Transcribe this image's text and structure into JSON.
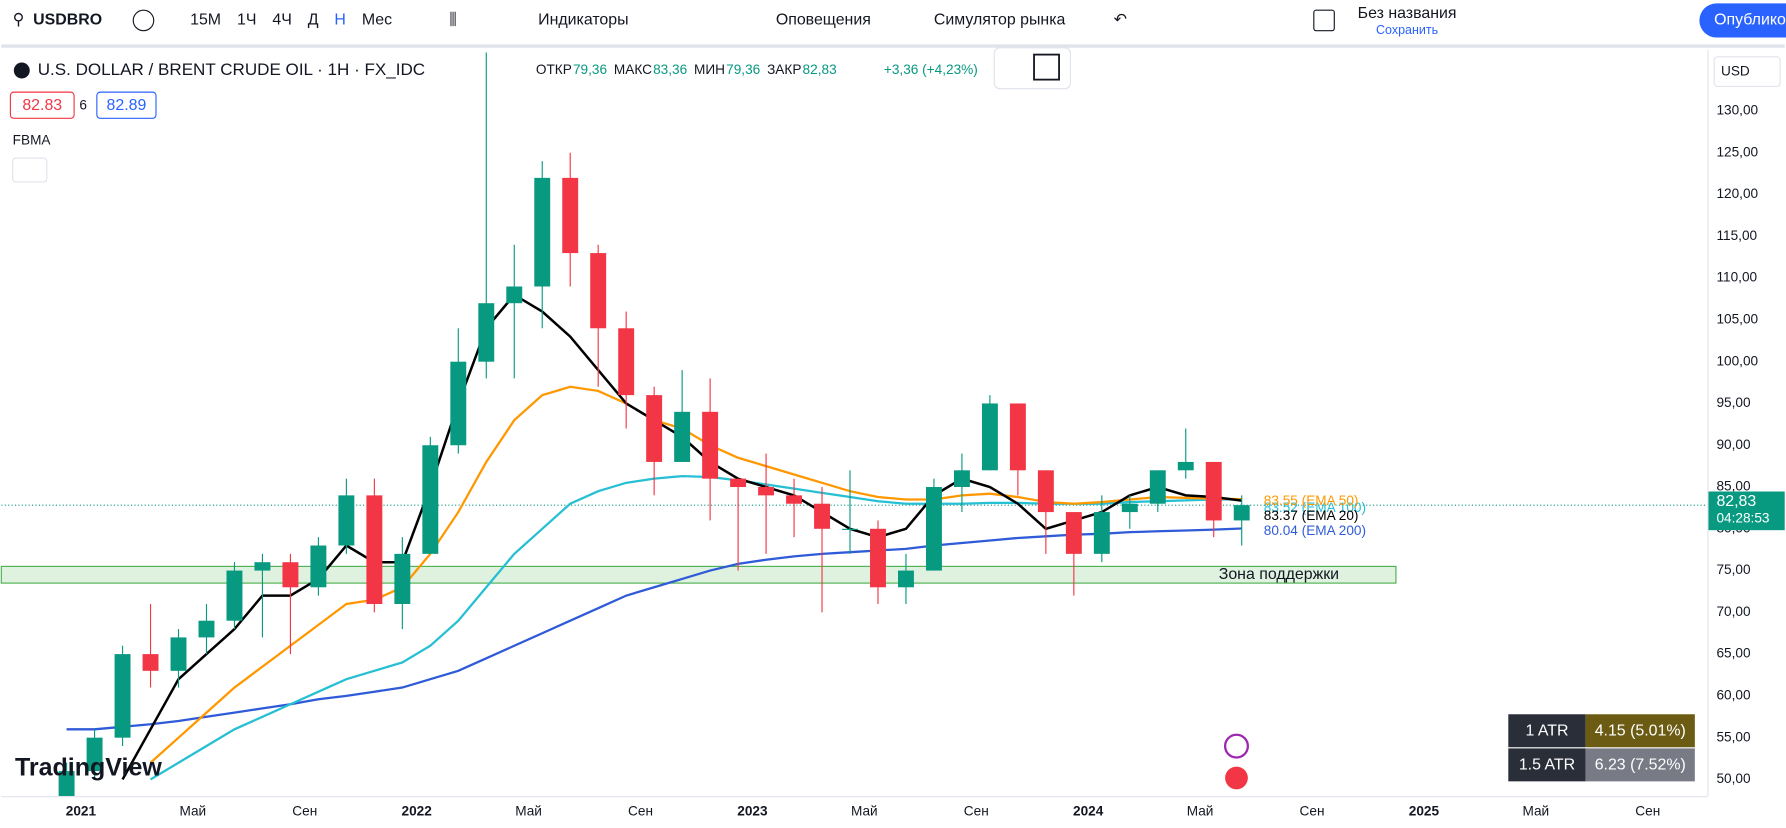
{
  "toolbar": {
    "symbol": "USDBRO",
    "intervals": [
      "15М",
      "1Ч",
      "4Ч",
      "Д",
      "Н",
      "Мес"
    ],
    "indicators": "Индикаторы",
    "alerts": "Оповещения",
    "replay": "Симулятор рынка",
    "layout_name": "Без названия",
    "save": "Сохранить",
    "publish": "Опубликовать"
  },
  "legend": {
    "title": "U.S. DOLLAR / BRENT CRUDE OIL · 1Н · FX_IDC",
    "ohlc": [
      {
        "label": "ОТКР",
        "value": "79,36"
      },
      {
        "label": "МАКС",
        "value": "83,36"
      },
      {
        "label": "МИН",
        "value": "79,36"
      },
      {
        "label": "ЗАКР",
        "value": "82,83"
      }
    ],
    "change": "+3,36 (+4,23%)",
    "bid": "82.83",
    "spread": "6",
    "ask": "82.89",
    "indicator": "FBMA"
  },
  "currency": "USD",
  "price_label": {
    "price": "82,83",
    "countdown": "04:28:53"
  },
  "atr_table": [
    [
      "1 ATR",
      "4.15 (5.01%)"
    ],
    [
      "1.5 ATR",
      "6.23 (7.52%)"
    ]
  ],
  "brand": "TradingView",
  "chart_data": {
    "type": "candlestick",
    "x": [
      "2020-12",
      "2021-01",
      "2021-02",
      "2021-03",
      "2021-04",
      "2021-05",
      "2021-06",
      "2021-07",
      "2021-08",
      "2021-09",
      "2021-10",
      "2021-11",
      "2021-12",
      "2022-01",
      "2022-02",
      "2022-03",
      "2022-04",
      "2022-05",
      "2022-06",
      "2022-07",
      "2022-08",
      "2022-09",
      "2022-10",
      "2022-11",
      "2022-12",
      "2023-01",
      "2023-02",
      "2023-03",
      "2023-04",
      "2023-05",
      "2023-06",
      "2023-07",
      "2023-08",
      "2023-09",
      "2023-10",
      "2023-11",
      "2023-12",
      "2024-01",
      "2024-02",
      "2024-03",
      "2024-04",
      "2024-05",
      "2024-06"
    ],
    "open": [
      48,
      51,
      55,
      65,
      63,
      67,
      69,
      75,
      76,
      73,
      78,
      84,
      71,
      77,
      90,
      100,
      107,
      109,
      122,
      113,
      104,
      96,
      88,
      94,
      86,
      85,
      84,
      83,
      80,
      80,
      73,
      75,
      85,
      87,
      95,
      87,
      82,
      77,
      82,
      83,
      87,
      88,
      81
    ],
    "high": [
      52,
      56,
      66,
      71,
      68,
      71,
      76,
      77,
      77,
      79,
      86,
      86,
      79,
      91,
      104,
      137,
      114,
      124,
      125,
      114,
      106,
      97,
      99,
      98,
      86,
      89,
      86,
      85,
      87,
      81,
      77,
      86,
      89,
      96,
      95,
      87,
      82,
      84,
      84,
      87,
      92,
      88,
      84
    ],
    "low": [
      47,
      50,
      54,
      61,
      61,
      65,
      68,
      67,
      65,
      72,
      77,
      70,
      68,
      77,
      89,
      98,
      98,
      104,
      109,
      97,
      92,
      84,
      88,
      81,
      75,
      77,
      79,
      70,
      77,
      71,
      71,
      75,
      82,
      87,
      84,
      77,
      72,
      76,
      80,
      82,
      86,
      79,
      78
    ],
    "close": [
      51,
      55,
      65,
      63,
      67,
      69,
      75,
      76,
      73,
      78,
      84,
      71,
      77,
      90,
      100,
      107,
      109,
      122,
      113,
      104,
      96,
      88,
      94,
      86,
      85,
      84,
      83,
      80,
      80,
      73,
      75,
      85,
      87,
      95,
      87,
      82,
      77,
      82,
      83,
      87,
      88,
      81,
      82.83
    ],
    "up_color": "#089981",
    "down_color": "#f23645",
    "series": [
      {
        "name": "EMA 200",
        "label": "80.04 (EMA 200)",
        "color": "#2f5bd8",
        "values": [
          56,
          56,
          56.3,
          56.6,
          57,
          57.5,
          58,
          58.5,
          59,
          59.6,
          60,
          60.5,
          61,
          62,
          63,
          64.5,
          66,
          67.5,
          69,
          70.5,
          72,
          73,
          74,
          75,
          75.8,
          76.3,
          76.7,
          77,
          77.2,
          77.4,
          77.6,
          78,
          78.3,
          78.6,
          78.9,
          79.1,
          79.3,
          79.4,
          79.6,
          79.7,
          79.8,
          79.9,
          80.04
        ]
      },
      {
        "name": "EMA 100",
        "label": "83.52 (EMA 100)",
        "color": "#26bfd3",
        "values": [
          null,
          null,
          null,
          50,
          52,
          54,
          56,
          57.5,
          59,
          60.5,
          62,
          63,
          64,
          66,
          69,
          73,
          77,
          80,
          83,
          84.5,
          85.5,
          86,
          86.3,
          86.2,
          85.8,
          85.3,
          84.8,
          84.3,
          83.8,
          83.3,
          83,
          83,
          83,
          83.1,
          83.1,
          83,
          83,
          83,
          83.2,
          83.3,
          83.4,
          83.5,
          83.52
        ]
      },
      {
        "name": "EMA 50",
        "label": "83.55 (EMA 50)",
        "color": "#ff9800",
        "values": [
          null,
          null,
          null,
          52,
          55,
          58,
          61,
          63.5,
          66,
          68.5,
          71,
          71.5,
          73,
          77,
          82,
          88,
          93,
          96,
          97,
          96.5,
          95,
          93,
          92,
          90,
          88.5,
          87.5,
          86.5,
          85.5,
          84.5,
          83.8,
          83.5,
          83.5,
          84,
          84.2,
          83.8,
          83.2,
          83,
          83.2,
          83.5,
          83.8,
          83.7,
          83.6,
          83.55
        ]
      },
      {
        "name": "EMA 20",
        "label": "83.37 (EMA 20)",
        "color": "#000000",
        "values": [
          null,
          null,
          50,
          56,
          62,
          65,
          68,
          72,
          72,
          74,
          78,
          76,
          76,
          85,
          95,
          104,
          108,
          106,
          103,
          99,
          95,
          93,
          91,
          88,
          86,
          85,
          84,
          82,
          80,
          79,
          80,
          84,
          86,
          85,
          83,
          80,
          81,
          82,
          84,
          85,
          84,
          83.8,
          83.37
        ]
      }
    ],
    "current_price": 82.83,
    "support_zone": {
      "label": "Зона поддержки",
      "range": [
        73.5,
        75.5
      ],
      "until": "2024-12"
    },
    "ylim": [
      48,
      137.3
    ],
    "yticks": [
      {
        "value": 50,
        "label": "50,00"
      },
      {
        "value": 55,
        "label": "55,00"
      },
      {
        "value": 60,
        "label": "60,00"
      },
      {
        "value": 65,
        "label": "65,00"
      },
      {
        "value": 70,
        "label": "70,00"
      },
      {
        "value": 75,
        "label": "75,00"
      },
      {
        "value": 80,
        "label": "80,00"
      },
      {
        "value": 85,
        "label": "85,00"
      },
      {
        "value": 90,
        "label": "90,00"
      },
      {
        "value": 95,
        "label": "95,00"
      },
      {
        "value": 100,
        "label": "100,00"
      },
      {
        "value": 105,
        "label": "105,00"
      },
      {
        "value": 110,
        "label": "110,00"
      },
      {
        "value": 115,
        "label": "115,00"
      },
      {
        "value": 120,
        "label": "120,00"
      },
      {
        "value": 125,
        "label": "125,00"
      },
      {
        "value": 130,
        "label": "130,00"
      }
    ],
    "xticks": [
      {
        "value": "2021-01",
        "label": "2021"
      },
      {
        "value": "2021-05",
        "label": "Май"
      },
      {
        "value": "2021-09",
        "label": "Сен"
      },
      {
        "value": "2022-01",
        "label": "2022"
      },
      {
        "value": "2022-05",
        "label": "Май"
      },
      {
        "value": "2022-09",
        "label": "Сен"
      },
      {
        "value": "2023-01",
        "label": "2023"
      },
      {
        "value": "2023-05",
        "label": "Май"
      },
      {
        "value": "2023-09",
        "label": "Сен"
      },
      {
        "value": "2024-01",
        "label": "2024"
      },
      {
        "value": "2024-05",
        "label": "Май"
      },
      {
        "value": "2024-09",
        "label": "Сен"
      },
      {
        "value": "2025-01",
        "label": "2025"
      },
      {
        "value": "2025-05",
        "label": "Май"
      },
      {
        "value": "2025-09",
        "label": "Сен"
      }
    ],
    "grid": true
  }
}
